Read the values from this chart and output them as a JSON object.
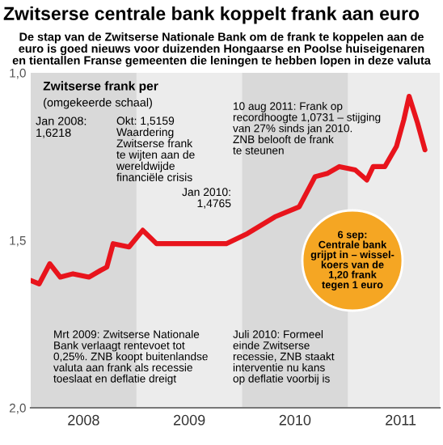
{
  "chart_data": {
    "type": "line",
    "title": "Zwitserse centrale bank koppelt frank aan euro",
    "subtitle": "De stap van de Zwitserse Nationale Bank om de frank te koppelen aan de\neuro is goed nieuws voor duizenden Hongaarse en Poolse huiseigenaren\nen tientallen Franse gemeenten die leningen te hebben lopen in deze valuta",
    "ylabel": "Zwitserse frank per\n(omgekeerde schaal)",
    "x": [
      2008.0,
      2008.08,
      2008.18,
      2008.28,
      2008.4,
      2008.55,
      2008.66,
      2008.72,
      2008.78,
      2008.93,
      2009.06,
      2009.19,
      2009.39,
      2009.62,
      2009.85,
      2010.05,
      2010.31,
      2010.54,
      2010.69,
      2010.81,
      2010.92,
      2011.07,
      2011.18,
      2011.24,
      2011.35,
      2011.46,
      2011.53,
      2011.58,
      2011.66,
      2011.73
    ],
    "series": [
      {
        "color": "#e8141c",
        "values": [
          1.62,
          1.63,
          1.57,
          1.61,
          1.6,
          1.61,
          1.59,
          1.58,
          1.51,
          1.52,
          1.47,
          1.51,
          1.51,
          1.51,
          1.51,
          1.48,
          1.43,
          1.4,
          1.31,
          1.3,
          1.28,
          1.29,
          1.32,
          1.28,
          1.28,
          1.22,
          1.14,
          1.07,
          1.15,
          1.23
        ]
      }
    ],
    "xlim": [
      2008.0,
      2011.87
    ],
    "ylim": [
      2.0,
      1.0
    ],
    "yticks": [
      {
        "value": 1.0,
        "label": "1,0"
      },
      {
        "value": 1.5,
        "label": "1,5"
      },
      {
        "value": 2.0,
        "label": "2,0"
      }
    ],
    "xticks": [
      {
        "value": 2008.5,
        "label": "2008"
      },
      {
        "value": 2009.5,
        "label": "2009"
      },
      {
        "value": 2010.5,
        "label": "2010"
      },
      {
        "value": 2011.5,
        "label": "2011"
      }
    ],
    "bands": [
      {
        "axis": "x",
        "from": 2008.0,
        "to": 2009.0,
        "label": null,
        "color": "#d9d9d9"
      },
      {
        "axis": "x",
        "from": 2010.0,
        "to": 2011.0,
        "label": null,
        "color": "#d9d9d9"
      }
    ],
    "line_style": "solid",
    "marker": "none",
    "grid": false,
    "annotations": [
      "Jan 2008:\n1,6218",
      "Okt: 1,5159\nWaardering\nZwitserse frank\nte wijten aan de\nwereldwijde\nfinanciële crisis",
      "Jan 2010:\n1,4765",
      "10 aug 2011: Frank op\nrecordhoogte 1,0731 – stijging\nvan 27% sinds jan 2010.\nZNB belooft de frank\nte steunen",
      "6 sep:\nCentrale bank\ngrijpt in – wissel-\nkoers van de\n1,20 frank\ntegen 1 euro",
      "Mrt 2009: Zwitserse Nationale\nBank verlaagt rentevoet tot\n0,25%. ZNB koopt buitenlandse\nvaluta aan frank als recessie\ntoeslaat en deflatie dreigt",
      "Juli 2010: Formeel\neinde Zwitserse\nrecessie, ZNB staakt\ninterventie nu kans\nop deflatie voorbij is"
    ]
  }
}
